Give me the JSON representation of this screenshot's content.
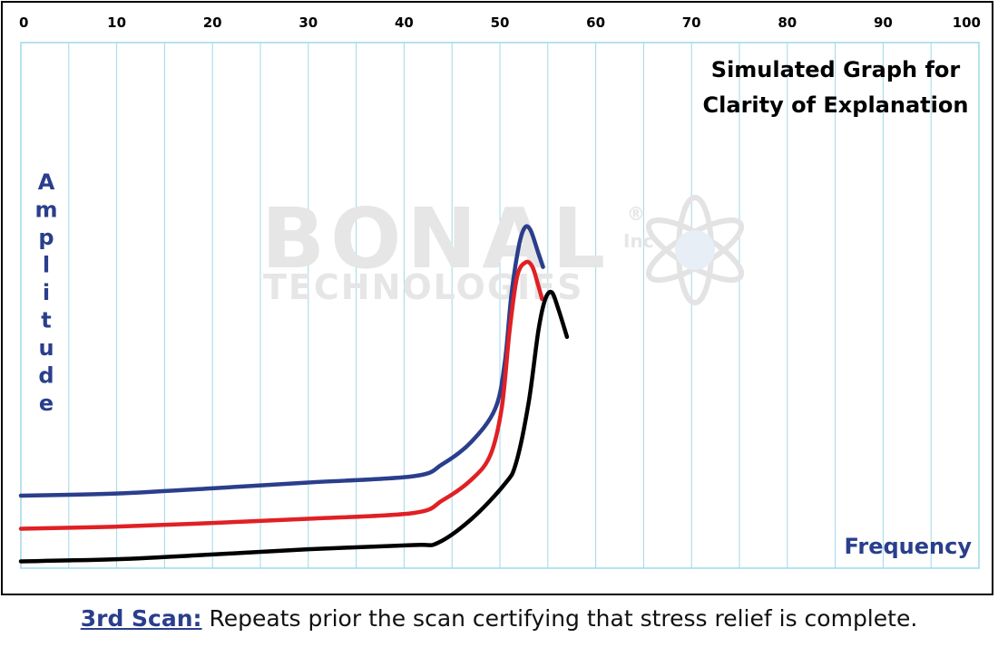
{
  "chart_data": {
    "type": "line",
    "title_lines": [
      "Simulated Graph for",
      "Clarity of Explanation"
    ],
    "xlabel": "Frequency",
    "ylabel": "Amplitude",
    "xlim": [
      0,
      100
    ],
    "x_ticks": [
      0,
      10,
      20,
      30,
      40,
      50,
      60,
      70,
      80,
      90,
      100
    ],
    "ylim": [
      0,
      100
    ],
    "grid": true,
    "series": [
      {
        "color": "#2a3e8c",
        "points": [
          [
            0,
            13.8
          ],
          [
            10,
            14.2
          ],
          [
            20,
            15.2
          ],
          [
            30,
            16.3
          ],
          [
            41,
            17.5
          ],
          [
            44,
            19.8
          ],
          [
            47,
            24
          ],
          [
            49.5,
            30.3
          ],
          [
            50.5,
            39
          ],
          [
            51.2,
            52
          ],
          [
            52,
            61.5
          ],
          [
            52.6,
            64.8
          ],
          [
            53.2,
            64.3
          ],
          [
            54,
            60
          ],
          [
            54.5,
            57.3
          ]
        ]
      },
      {
        "color": "#e02024",
        "points": [
          [
            0,
            7.5
          ],
          [
            10,
            7.9
          ],
          [
            20,
            8.6
          ],
          [
            30,
            9.4
          ],
          [
            41,
            10.5
          ],
          [
            44,
            12.9
          ],
          [
            47,
            16.8
          ],
          [
            49,
            21.5
          ],
          [
            50.2,
            30.6
          ],
          [
            51,
            45
          ],
          [
            51.8,
            55.5
          ],
          [
            52.7,
            58.2
          ],
          [
            53.4,
            57.3
          ],
          [
            54,
            53.8
          ],
          [
            54.4,
            51.2
          ]
        ]
      },
      {
        "color": "#000000",
        "points": [
          [
            0,
            1.3
          ],
          [
            10,
            1.7
          ],
          [
            20,
            2.6
          ],
          [
            30,
            3.6
          ],
          [
            41,
            4.4
          ],
          [
            43.5,
            4.8
          ],
          [
            47,
            9.3
          ],
          [
            50.5,
            16
          ],
          [
            51.7,
            20.1
          ],
          [
            53,
            31.5
          ],
          [
            54,
            45
          ],
          [
            54.7,
            51
          ],
          [
            55.4,
            52.5
          ],
          [
            56.1,
            49.3
          ],
          [
            57,
            44
          ]
        ]
      }
    ],
    "watermark": {
      "line1": "BONAL",
      "line2": "TECHNOLOGIES",
      "mark": "®",
      "inc": "Inc"
    }
  },
  "caption": {
    "label": "3rd Scan:",
    "text": " Repeats prior the scan certifying that stress relief is complete."
  },
  "colors": {
    "grid": "#9fd8ea",
    "accent": "#2a3e8c"
  }
}
